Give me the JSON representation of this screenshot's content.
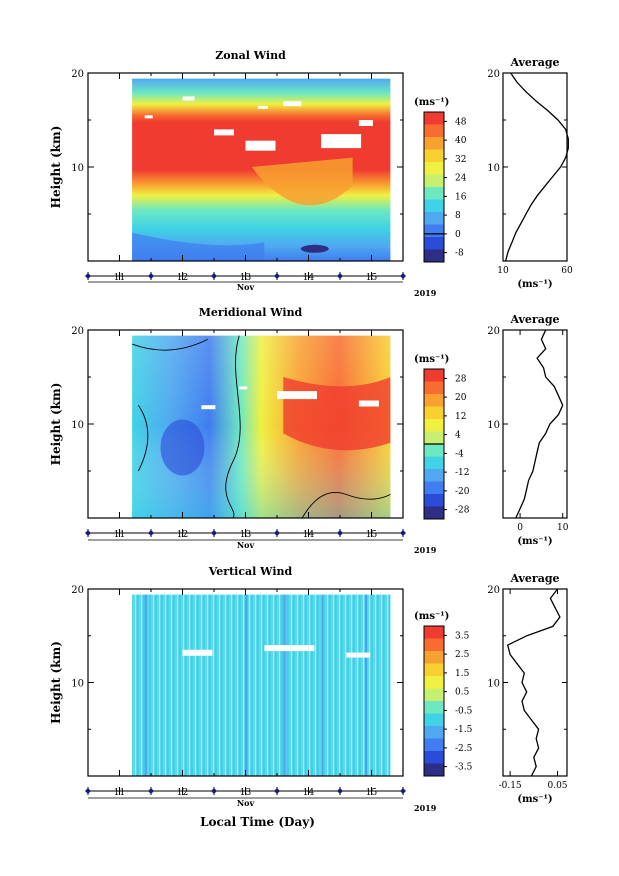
{
  "chart_data": [
    {
      "type": "heatmap",
      "title": "Zonal Wind",
      "ylabel": "Height (km)",
      "xlabel": "",
      "ylim": [
        0,
        20
      ],
      "y_ticks": [
        "10",
        "20"
      ],
      "x_ticks": [
        "11",
        "12",
        "13",
        "14",
        "15"
      ],
      "month": "Nov",
      "year": "2019",
      "xlim": [
        10.5,
        15.5
      ],
      "unit": "(ms⁻¹)",
      "colorbar_ticks": [
        "48",
        "40",
        "32",
        "24",
        "16",
        "8",
        "0",
        "-8"
      ],
      "colorbar_range": [
        -12,
        52
      ],
      "contour_level": "0",
      "colors": [
        "#2e2e86",
        "#2b4bd8",
        "#3f7df0",
        "#4fa8f0",
        "#40d2e6",
        "#6ee8c0",
        "#c8f070",
        "#f0f040",
        "#f8d030",
        "#f8a030",
        "#f86c30",
        "#f03c30"
      ]
    },
    {
      "type": "heatmap",
      "title": "Meridional Wind",
      "ylabel": "Height (km)",
      "xlabel": "",
      "ylim": [
        0,
        20
      ],
      "y_ticks": [
        "10",
        "20"
      ],
      "x_ticks": [
        "11",
        "12",
        "13",
        "14",
        "15"
      ],
      "month": "Nov",
      "year": "2019",
      "xlim": [
        10.5,
        15.5
      ],
      "unit": "(ms⁻¹)",
      "colorbar_ticks": [
        "28",
        "20",
        "12",
        "4",
        "-4",
        "-12",
        "-20",
        "-28"
      ],
      "colorbar_range": [
        -32,
        32
      ],
      "contour_level": "0"
    },
    {
      "type": "heatmap",
      "title": "Vertical Wind",
      "ylabel": "Height (km)",
      "xlabel": "Local Time (Day)",
      "ylim": [
        0,
        20
      ],
      "y_ticks": [
        "10",
        "20"
      ],
      "x_ticks": [
        "11",
        "12",
        "13",
        "14",
        "15"
      ],
      "month": "Nov",
      "year": "2019",
      "xlim": [
        10.5,
        15.5
      ],
      "unit": "(ms⁻¹)",
      "colorbar_ticks": [
        "3.5",
        "2.5",
        "1.5",
        "0.5",
        "-0.5",
        "-1.5",
        "-2.5",
        "-3.5"
      ],
      "colorbar_range": [
        -4,
        4
      ]
    },
    {
      "type": "line",
      "title": "Average",
      "ylim": [
        0,
        20
      ],
      "y_ticks": [
        "10",
        "20"
      ],
      "x_tick_labels": [
        "10",
        "60"
      ],
      "x_tick_values": [
        10,
        60
      ],
      "xlim": [
        10,
        60
      ],
      "xlabel": "(ms⁻¹)",
      "y": [
        0,
        1,
        2,
        3,
        4,
        5,
        6,
        7,
        8,
        9,
        10,
        11,
        12,
        13,
        14,
        15,
        16,
        17,
        18,
        19,
        20
      ],
      "x": [
        12,
        14,
        17,
        20,
        24,
        28,
        32,
        37,
        43,
        49,
        55,
        59,
        61,
        61,
        59,
        53,
        45,
        36,
        28,
        21,
        16
      ]
    },
    {
      "type": "line",
      "title": "Average",
      "ylim": [
        0,
        20
      ],
      "y_ticks": [
        "10",
        "20"
      ],
      "x_tick_labels": [
        "0",
        "10"
      ],
      "x_tick_values": [
        0,
        10
      ],
      "xlim": [
        -4,
        11
      ],
      "xlabel": "(ms⁻¹)",
      "y": [
        0,
        1,
        2,
        3,
        4,
        5,
        6,
        7,
        8,
        9,
        10,
        11,
        12,
        13,
        14,
        15,
        16,
        17,
        18,
        19,
        20
      ],
      "x": [
        -1,
        0,
        1,
        1.5,
        2,
        3,
        3.5,
        4,
        4.5,
        6,
        7,
        9,
        10,
        9,
        8,
        6,
        5.5,
        4,
        6,
        5,
        6
      ]
    },
    {
      "type": "line",
      "title": "Average",
      "ylim": [
        0,
        20
      ],
      "y_ticks": [
        "10",
        "20"
      ],
      "x_tick_labels": [
        "-0.15",
        "0.05"
      ],
      "x_tick_values": [
        -0.15,
        0.05
      ],
      "xlim": [
        -0.18,
        0.09
      ],
      "xlabel": "(ms⁻¹)",
      "y": [
        0,
        1,
        2,
        3,
        4,
        5,
        6,
        7,
        8,
        9,
        10,
        11,
        12,
        13,
        14,
        15,
        16,
        17,
        18,
        19,
        20
      ],
      "x": [
        -0.06,
        -0.04,
        -0.05,
        -0.03,
        -0.04,
        -0.03,
        -0.06,
        -0.09,
        -0.1,
        -0.08,
        -0.1,
        -0.09,
        -0.12,
        -0.15,
        -0.16,
        -0.08,
        0.03,
        0.06,
        0.04,
        0.02,
        0.05
      ]
    }
  ]
}
